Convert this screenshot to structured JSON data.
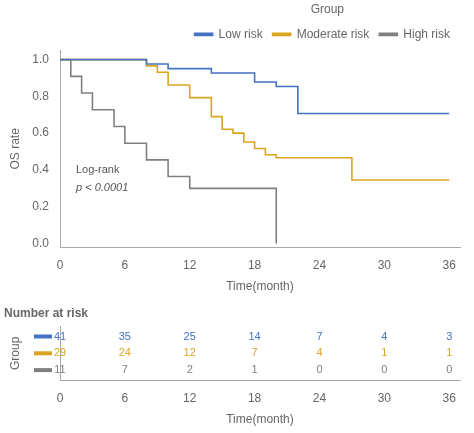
{
  "chart_data": [
    {
      "type": "line",
      "xlabel": "Time(month)",
      "ylabel": "OS rate",
      "legend_title": "Group",
      "legend": "upper right",
      "annotations": [
        "Log-rank",
        "p < 0.0001"
      ],
      "xlim": [
        0,
        37
      ],
      "ylim": [
        -0.02,
        1.05
      ],
      "xticks": [
        0,
        6,
        12,
        18,
        24,
        30,
        36
      ],
      "yticks": [
        {
          "value": 0.0,
          "label": "0.0"
        },
        0.2,
        0.4,
        0.6,
        0.8,
        {
          "value": 1.0,
          "label": "1.0"
        }
      ],
      "grid": false,
      "line_style": "step",
      "series": [
        {
          "name": "Low risk",
          "color": "#4472C4",
          "x": [
            0,
            8,
            8,
            10,
            10,
            14,
            14,
            18,
            18,
            20,
            20,
            22,
            22,
            24,
            24,
            36
          ],
          "values": [
            1.0,
            1.0,
            0.976,
            0.976,
            0.951,
            0.951,
            0.927,
            0.927,
            0.878,
            0.878,
            0.854,
            0.854,
            0.707,
            0.707,
            0.707,
            0.707
          ]
        },
        {
          "name": "Moderate risk",
          "color": "#DAA520",
          "x": [
            0,
            8,
            8,
            9,
            9,
            10,
            10,
            12,
            12,
            14,
            14,
            15,
            15,
            16,
            16,
            17,
            17,
            18,
            18,
            19,
            19,
            20,
            20,
            27,
            27,
            36
          ],
          "values": [
            1.0,
            1.0,
            0.966,
            0.966,
            0.931,
            0.931,
            0.862,
            0.862,
            0.793,
            0.793,
            0.69,
            0.69,
            0.621,
            0.621,
            0.6,
            0.6,
            0.552,
            0.552,
            0.517,
            0.517,
            0.483,
            0.483,
            0.466,
            0.466,
            0.345,
            0.345
          ]
        },
        {
          "name": "High risk",
          "color": "#808080",
          "x": [
            0,
            1,
            1,
            2,
            2,
            3,
            3,
            5,
            5,
            6,
            6,
            8,
            8,
            10,
            10,
            12,
            12,
            18,
            18,
            20,
            20
          ],
          "values": [
            1.0,
            1.0,
            0.909,
            0.909,
            0.818,
            0.818,
            0.727,
            0.727,
            0.636,
            0.636,
            0.545,
            0.545,
            0.455,
            0.455,
            0.364,
            0.364,
            0.3,
            0.3,
            0.3,
            0.3,
            0.0
          ]
        }
      ]
    },
    {
      "type": "table",
      "title": "Number at risk",
      "xlabel": "Time(month)",
      "ylabel": "Group",
      "x": [
        0,
        6,
        12,
        18,
        24,
        30,
        36
      ],
      "xlim": [
        0,
        37
      ],
      "xticks": [
        0,
        6,
        12,
        18,
        24,
        30,
        36
      ],
      "grid": false,
      "series": [
        {
          "color": "#4472C4",
          "values": [
            41,
            35,
            25,
            14,
            7,
            4,
            3
          ]
        },
        {
          "color": "#DAA520",
          "values": [
            29,
            24,
            12,
            7,
            4,
            1,
            1
          ]
        },
        {
          "color": "#808080",
          "values": [
            11,
            7,
            2,
            1,
            0,
            0,
            0
          ]
        }
      ]
    }
  ]
}
